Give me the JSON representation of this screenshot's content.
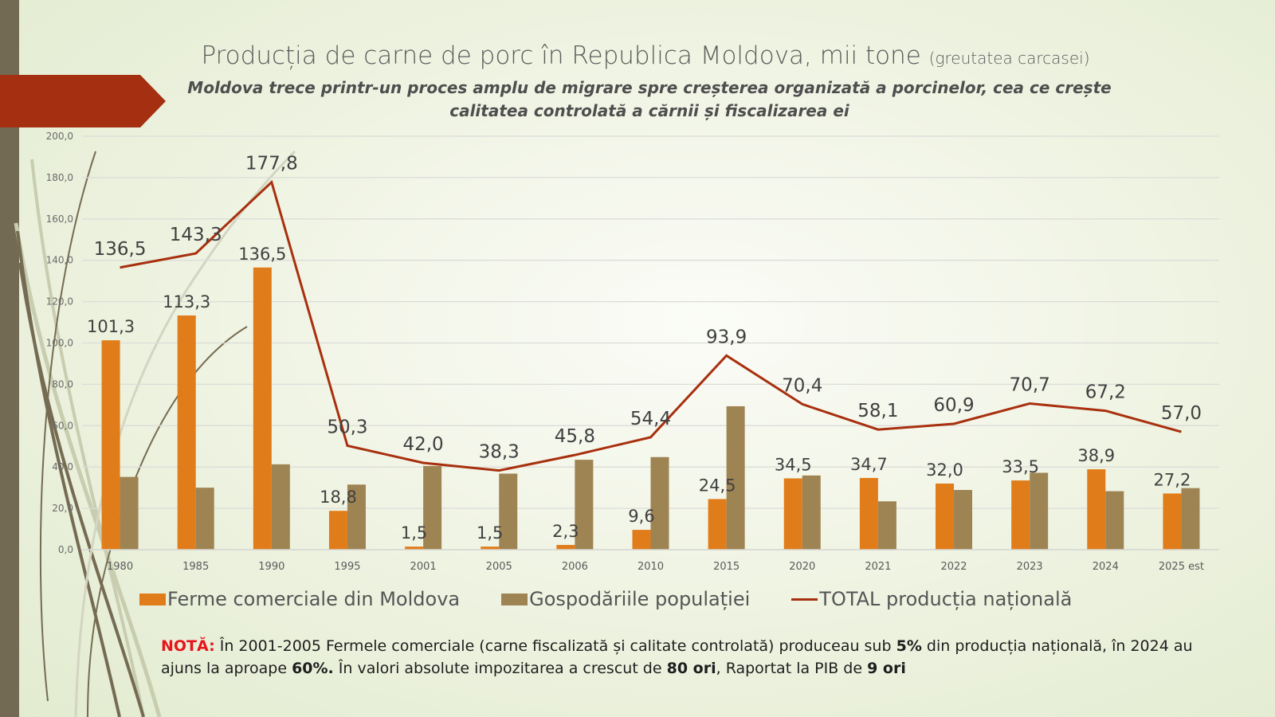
{
  "title": {
    "main": "Producția de carne de porc în Republica Moldova, mii tone",
    "unit_note": "(greutatea carcasei)"
  },
  "subtitle": {
    "line1": "Moldova trece printr-un proces amplu de migrare spre creșterea organizată a porcinelor, cea ce crește",
    "line2": "calitatea controlată a cărnii și fiscalizarea ei"
  },
  "colors": {
    "commercial": "#e07d1a",
    "households": "#9f8453",
    "total": "#a8300f",
    "banner": "#a53011",
    "note_label": "#e8141c"
  },
  "chart_data": {
    "type": "bar",
    "title": "Producția de carne de porc în Republica Moldova, mii tone (greutatea carcasei)",
    "xlabel": "",
    "ylabel": "",
    "ylim": [
      0,
      200
    ],
    "yticks": [
      "0,0",
      "20,0",
      "40,0",
      "60,0",
      "80,0",
      "100,0",
      "120,0",
      "140,0",
      "160,0",
      "180,0",
      "200,0"
    ],
    "ytick_values": [
      0,
      20,
      40,
      60,
      80,
      100,
      120,
      140,
      160,
      180,
      200
    ],
    "grid": true,
    "legend_position": "bottom",
    "categories": [
      "1980",
      "1985",
      "1990",
      "1995",
      "2001",
      "2005",
      "2006",
      "2010",
      "2015",
      "2020",
      "2021",
      "2022",
      "2023",
      "2024",
      "2025 est"
    ],
    "series": [
      {
        "name": "Ferme comerciale din Moldova",
        "kind": "bar",
        "values": [
          101.3,
          113.3,
          136.5,
          18.8,
          1.5,
          1.5,
          2.3,
          9.6,
          24.5,
          34.5,
          34.7,
          32.0,
          33.5,
          38.9,
          27.2
        ],
        "labels": [
          "101,3",
          "113,3",
          "136,5",
          "18,8",
          "1,5",
          "1,5",
          "2,3",
          "9,6",
          "24,5",
          "34,5",
          "34,7",
          "32,0",
          "33,5",
          "38,9",
          "27,2"
        ]
      },
      {
        "name": "Gospodăriile populației",
        "kind": "bar",
        "values": [
          35.2,
          30.0,
          41.3,
          31.5,
          40.5,
          36.8,
          43.5,
          44.8,
          69.4,
          35.9,
          23.4,
          28.9,
          37.2,
          28.3,
          29.8
        ]
      },
      {
        "name": "TOTAL producția națională",
        "kind": "line",
        "values": [
          136.5,
          143.3,
          177.8,
          50.3,
          42.0,
          38.3,
          45.8,
          54.4,
          93.9,
          70.4,
          58.1,
          60.9,
          70.7,
          67.2,
          57.0
        ],
        "labels": [
          "136,5",
          "143,3",
          "177,8",
          "50,3",
          "42,0",
          "38,3",
          "45,8",
          "54,4",
          "93,9",
          "70,4",
          "58,1",
          "60,9",
          "70,7",
          "67,2",
          "57,0"
        ]
      }
    ]
  },
  "legend": [
    {
      "label": "Ferme comerciale din Moldova",
      "type": "box"
    },
    {
      "label": "Gospodăriile populației",
      "type": "box"
    },
    {
      "label": "TOTAL producția națională",
      "type": "line"
    }
  ],
  "note": {
    "label": "NOTĂ:",
    "t1": " În 2001-2005 Fermele comerciale (carne fiscalizată și calitate controlată) produceau sub ",
    "b1": "5%",
    "t2": " din producția națională, în 2024 au ajuns la aproape ",
    "b2": "60%.",
    "t3": " În valori absolute impozitarea a crescut de ",
    "b3": "80 ori",
    "t4": ", Raportat la PIB de ",
    "b4": "9 ori"
  }
}
